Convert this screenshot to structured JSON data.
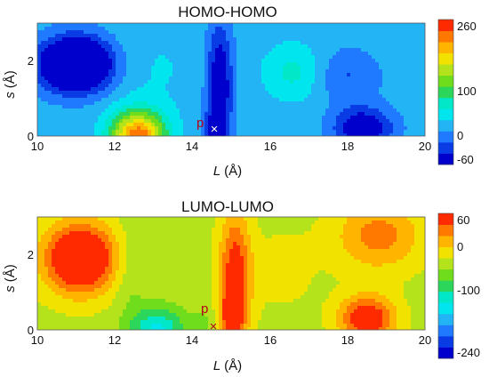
{
  "chart_data": [
    {
      "type": "heatmap",
      "title": "HOMO-HOMO",
      "xlabel_var": "L",
      "xlabel_unit": "(Å)",
      "ylabel_var": "s",
      "ylabel_unit": "(Å)",
      "xlim": [
        10,
        20
      ],
      "ylim": [
        0,
        3
      ],
      "xticks": [
        "10",
        "12",
        "14",
        "16",
        "18",
        "20"
      ],
      "yticks": [
        "0",
        "2"
      ],
      "colorbar": {
        "min": -60,
        "max": 260,
        "ticks": [
          "260",
          "100",
          "0",
          "-60"
        ],
        "tick_values": [
          260,
          100,
          0,
          -60
        ]
      },
      "background_value": 25,
      "features": [
        {
          "x": 11.0,
          "y": 1.9,
          "sx": 0.9,
          "sy": 0.7,
          "value": -160
        },
        {
          "x": 12.6,
          "y": 0.0,
          "sx": 0.7,
          "sy": 0.65,
          "value": 230
        },
        {
          "x": 13.0,
          "y": 1.8,
          "sx": 1.5,
          "sy": 1.3,
          "value": 40
        },
        {
          "x": 14.7,
          "y": 1.4,
          "sx": 0.33,
          "sy": 1.6,
          "value": -70
        },
        {
          "x": 14.6,
          "y": 0.0,
          "sx": 0.3,
          "sy": 0.7,
          "value": -30
        },
        {
          "x": 16.6,
          "y": 1.7,
          "sx": 0.75,
          "sy": 0.75,
          "value": 70
        },
        {
          "x": 18.4,
          "y": 0.2,
          "sx": 0.75,
          "sy": 0.55,
          "value": -70
        },
        {
          "x": 19.5,
          "y": 2.2,
          "sx": 1.0,
          "sy": 1.0,
          "value": 25
        },
        {
          "x": 18.0,
          "y": 1.6,
          "sx": 0.8,
          "sy": 0.7,
          "value": -12
        }
      ],
      "marker": {
        "label": "p",
        "symbol": "×",
        "x": 14.5,
        "y": 0.2,
        "color": "#ffffff"
      }
    },
    {
      "type": "heatmap",
      "title": "LUMO-LUMO",
      "xlabel_var": "L",
      "xlabel_unit": "(Å)",
      "ylabel_var": "s",
      "ylabel_unit": "(Å)",
      "xlim": [
        10,
        20
      ],
      "ylim": [
        0,
        3
      ],
      "xticks": [
        "10",
        "12",
        "14",
        "16",
        "18",
        "20"
      ],
      "yticks": [
        "0",
        "2"
      ],
      "colorbar": {
        "min": -240,
        "max": 60,
        "ticks": [
          "60",
          "0",
          "-100",
          "-240"
        ],
        "tick_values": [
          60,
          0,
          -100,
          -240
        ]
      },
      "background_value": -40,
      "features": [
        {
          "x": 11.1,
          "y": 1.9,
          "sx": 0.9,
          "sy": 0.9,
          "value": 110
        },
        {
          "x": 13.1,
          "y": 0.0,
          "sx": 0.7,
          "sy": 0.6,
          "value": -130
        },
        {
          "x": 12.4,
          "y": 1.5,
          "sx": 0.4,
          "sy": 1.3,
          "value": -60
        },
        {
          "x": 15.1,
          "y": 1.4,
          "sx": 0.4,
          "sy": 1.7,
          "value": 60
        },
        {
          "x": 15.0,
          "y": 0.25,
          "sx": 0.3,
          "sy": 0.7,
          "value": 25
        },
        {
          "x": 16.3,
          "y": 1.6,
          "sx": 0.9,
          "sy": 1.1,
          "value": -25
        },
        {
          "x": 18.5,
          "y": 0.3,
          "sx": 0.7,
          "sy": 0.6,
          "value": 70
        },
        {
          "x": 18.8,
          "y": 2.5,
          "sx": 1.1,
          "sy": 0.9,
          "value": 25
        },
        {
          "x": 14.4,
          "y": 0.2,
          "sx": 0.4,
          "sy": 0.4,
          "value": -60
        }
      ],
      "marker": {
        "label": "p",
        "symbol": "×",
        "x": 14.5,
        "y": 0.2,
        "color": "#b3001b"
      }
    }
  ],
  "colormap": [
    "#0000cc",
    "#0a3ce6",
    "#1f7aff",
    "#22b4f5",
    "#00e5ee",
    "#00e8c8",
    "#2cd65a",
    "#6fdc1c",
    "#b4e31c",
    "#f2e200",
    "#ffb400",
    "#ff7800",
    "#ff2a00"
  ]
}
